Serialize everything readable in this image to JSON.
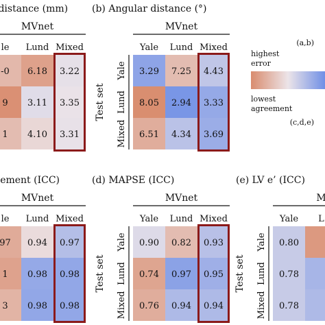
{
  "colors": {
    "high": "#d98c6e",
    "mid": "#ece4e8",
    "low": "#6f8fe6",
    "highlight_border": "#8b1a1a"
  },
  "legend": {
    "top_label": "(a,b)",
    "high_label_1": "highest",
    "high_label_2": "error",
    "low_label_1": "lowest",
    "low_label_2": "agreement",
    "bottom_label": "(c,d,e)"
  },
  "chart_data": [
    {
      "type": "heatmap",
      "title": "n distance (mm)",
      "column_title": "MVnet",
      "row_title": "",
      "columns": [
        "le",
        "Lund",
        "Mixed"
      ],
      "rows": [
        "",
        "",
        ""
      ],
      "cell_text": [
        [
          "-0",
          "6.18",
          "3.22"
        ],
        [
          "9",
          "3.11",
          "3.35"
        ],
        [
          "1",
          "4.10",
          "3.31"
        ]
      ],
      "color_values": [
        [
          0.5,
          0.76,
          -0.05
        ],
        [
          0.95,
          -0.1,
          -0.02
        ],
        [
          0.45,
          0.15,
          -0.03
        ]
      ],
      "highlight_column": 2
    },
    {
      "type": "heatmap",
      "title": "(b) Angular distance (°)",
      "column_title": "MVnet",
      "row_title": "Test set",
      "columns": [
        "Yale",
        "Lund",
        "Mixed"
      ],
      "rows": [
        "Yale",
        "Lund",
        "Mixed"
      ],
      "cell_text": [
        [
          "3.29",
          "7.25",
          "4.43"
        ],
        [
          "8.05",
          "2.94",
          "3.33"
        ],
        [
          "6.51",
          "4.34",
          "3.69"
        ]
      ],
      "values": [
        [
          3.29,
          7.25,
          4.43
        ],
        [
          8.05,
          2.94,
          3.33
        ],
        [
          6.51,
          4.34,
          3.69
        ]
      ],
      "color_values": [
        [
          -0.75,
          0.45,
          -0.35
        ],
        [
          0.98,
          -0.92,
          -0.7
        ],
        [
          0.62,
          -0.4,
          -0.65
        ]
      ],
      "highlight_column": 2
    },
    {
      "type": "heatmap",
      "title": "acement (ICC)",
      "column_title": "MVnet",
      "row_title": "",
      "columns": [
        "le",
        "Lund",
        "Mixed"
      ],
      "rows": [
        "",
        "",
        ""
      ],
      "cell_text": [
        [
          "97",
          "0.94",
          "0.97"
        ],
        [
          "1",
          "0.98",
          "0.98"
        ],
        [
          "3",
          "0.98",
          "0.98"
        ]
      ],
      "color_values": [
        [
          0.65,
          0.1,
          -0.45
        ],
        [
          0.75,
          -0.7,
          -0.72
        ],
        [
          0.55,
          -0.72,
          -0.72
        ]
      ],
      "highlight_column": 2
    },
    {
      "type": "heatmap",
      "title": "(d) MAPSE (ICC)",
      "column_title": "MVnet",
      "row_title": "Test set",
      "columns": [
        "Yale",
        "Lund",
        "Mixed"
      ],
      "rows": [
        "Yale",
        "Lund",
        "Mixed"
      ],
      "cell_text": [
        [
          "0.90",
          "0.82",
          "0.93"
        ],
        [
          "0.74",
          "0.97",
          "0.95"
        ],
        [
          "0.76",
          "0.94",
          "0.94"
        ]
      ],
      "values": [
        [
          0.9,
          0.82,
          0.93
        ],
        [
          0.74,
          0.97,
          0.95
        ],
        [
          0.76,
          0.94,
          0.94
        ]
      ],
      "color_values": [
        [
          -0.12,
          0.45,
          -0.42
        ],
        [
          0.72,
          -0.78,
          -0.62
        ],
        [
          0.62,
          -0.5,
          -0.5
        ]
      ],
      "highlight_column": 2
    },
    {
      "type": "heatmap",
      "title": "(e) LV e’ (ICC)",
      "column_title": "M",
      "row_title": "Test set",
      "columns": [
        "Yale",
        "L"
      ],
      "rows": [
        "Yale",
        "Lund",
        "Mixed"
      ],
      "cell_text": [
        [
          "0.80",
          ""
        ],
        [
          "0.78",
          ""
        ],
        [
          "0.78",
          ""
        ]
      ],
      "values": [
        [
          0.8,
          null
        ],
        [
          0.78,
          null
        ],
        [
          0.78,
          null
        ]
      ],
      "color_values": [
        [
          -0.3,
          0.85
        ],
        [
          -0.3,
          -0.55
        ],
        [
          -0.3,
          -0.5
        ]
      ],
      "highlight_column": -1
    }
  ]
}
